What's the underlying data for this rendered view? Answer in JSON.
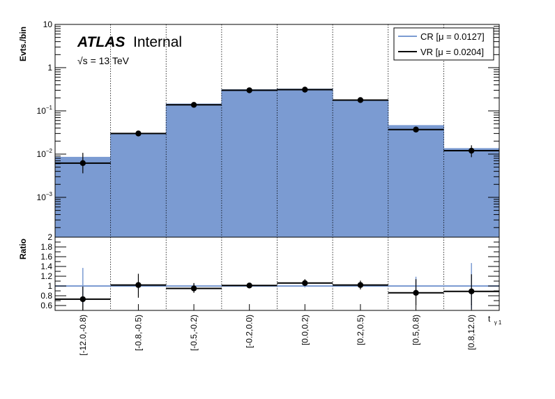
{
  "chart_data": {
    "type": "bar",
    "categories": [
      "[-12.0,-0.8)",
      "[-0.8,-0.5)",
      "[-0.5,-0.2)",
      "[-0.2,0.0)",
      "[0.0,0.2)",
      "[0.2,0.5)",
      "[0.5,0.8)",
      "[0.8,12.0)"
    ],
    "ylabel": "Evts./bin",
    "ratio_ylabel": "Ratio",
    "xlabel": "t",
    "xlabel_sub": "γ 1",
    "title": "ATLAS",
    "title_suffix": "Internal",
    "subtitle": "√s = 13 TeV",
    "y_scale": "log",
    "ylim": [
      0.00012,
      10
    ],
    "y_ticks": [
      {
        "value": 0.001,
        "base": "10",
        "exp": "−3"
      },
      {
        "value": 0.01,
        "base": "10",
        "exp": "−2"
      },
      {
        "value": 0.1,
        "base": "10",
        "exp": "−1"
      },
      {
        "value": 1,
        "base": "1",
        "exp": ""
      },
      {
        "value": 10,
        "base": "10",
        "exp": ""
      }
    ],
    "ratio_ylim": [
      0.5,
      2.0
    ],
    "ratio_ticks": [
      "0.6",
      "0.8",
      "1",
      "1.2",
      "1.4",
      "1.6",
      "1.8",
      "2"
    ],
    "legend": {
      "position": "top-right",
      "entries": [
        {
          "label": "CR [μ = 0.0127]",
          "color": "#7b9bd2"
        },
        {
          "label": "VR [μ = 0.0204]",
          "color": "#000000"
        }
      ]
    },
    "series": [
      {
        "name": "CR [μ = 0.0127]",
        "type": "filled-histogram",
        "color": "#7b9bd2",
        "values": [
          0.0085,
          0.03,
          0.145,
          0.31,
          0.32,
          0.18,
          0.046,
          0.0135
        ]
      },
      {
        "name": "VR [μ = 0.0204]",
        "type": "histogram-with-errors",
        "color": "#000000",
        "values": [
          0.0062,
          0.03,
          0.138,
          0.3,
          0.31,
          0.178,
          0.037,
          0.012
        ],
        "err_low": [
          0.0026,
          0.0035,
          0.012,
          0.018,
          0.019,
          0.014,
          0.005,
          0.0035
        ],
        "err_high": [
          0.0045,
          0.0035,
          0.012,
          0.018,
          0.019,
          0.014,
          0.005,
          0.004
        ]
      }
    ],
    "ratio": {
      "reference": 1.0,
      "reference_color": "#7b9bd2",
      "values": [
        0.73,
        1.02,
        0.95,
        1.01,
        1.06,
        1.02,
        0.86,
        0.89
      ],
      "err_low": [
        0.22,
        0.26,
        0.09,
        0.05,
        0.06,
        0.09,
        0.25,
        0.28
      ],
      "err_high": [
        0.26,
        0.23,
        0.11,
        0.05,
        0.08,
        0.09,
        0.28,
        0.35
      ],
      "cr_err": [
        0.37,
        0.07,
        0.05,
        0.03,
        0.03,
        0.03,
        0.19,
        0.47
      ],
      "color": "#000000"
    },
    "grid": {
      "x": "dotted-vertical",
      "y": "none"
    }
  }
}
